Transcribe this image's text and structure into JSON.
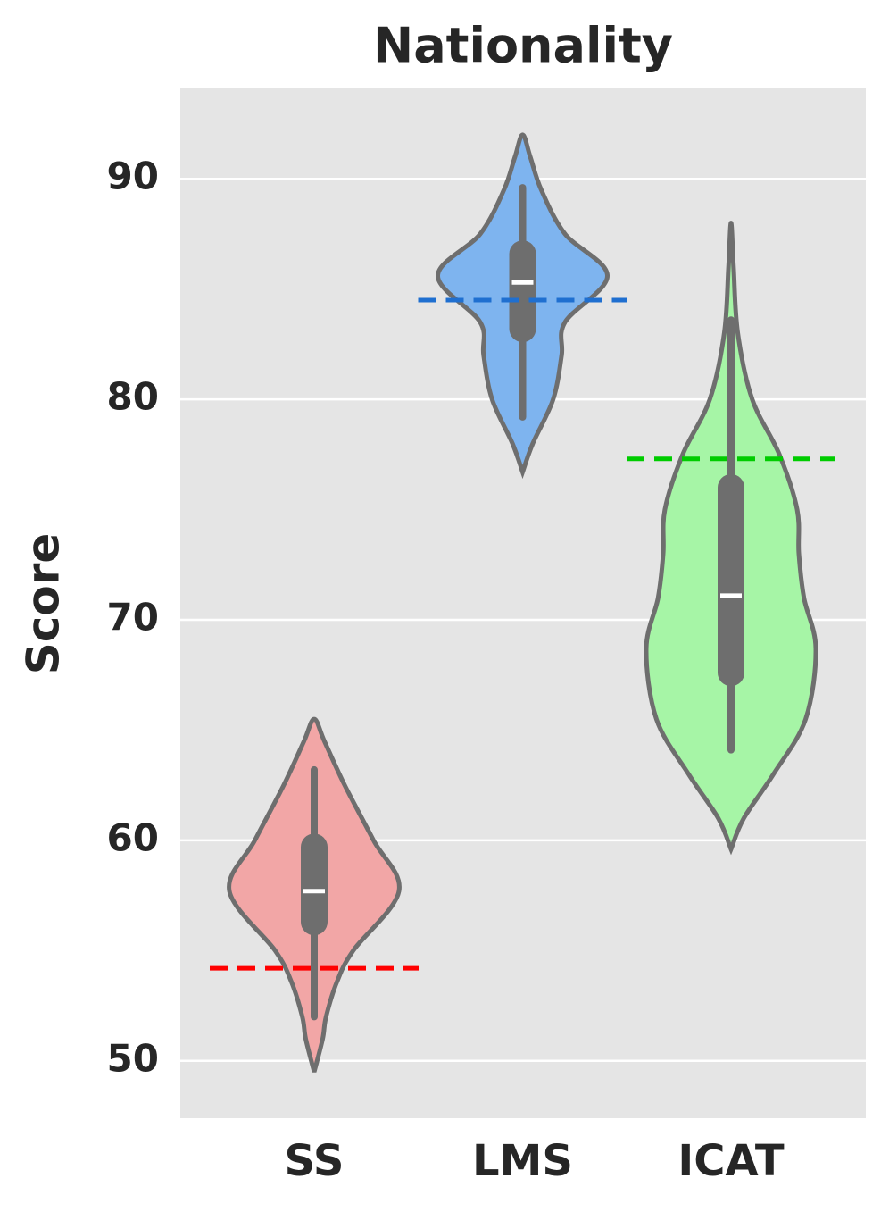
{
  "chart_data": {
    "type": "violin",
    "title": "Nationality",
    "y_label": "Score",
    "categories": [
      "SS",
      "LMS",
      "ICAT"
    ],
    "ylim": [
      47.4,
      94.1
    ],
    "yticks": [
      50,
      60,
      70,
      80,
      90
    ],
    "grid": true,
    "series": [
      {
        "color": "#f2a6a6",
        "density": [
          [
            49.5,
            0
          ],
          [
            51,
            0.1
          ],
          [
            52,
            0.14
          ],
          [
            53.6,
            0.27
          ],
          [
            55,
            0.46
          ],
          [
            57.7,
            1.0
          ],
          [
            60,
            0.7
          ],
          [
            62.5,
            0.36
          ],
          [
            64.5,
            0.12
          ],
          [
            65.5,
            0
          ]
        ],
        "whisker": [
          52,
          63.2
        ],
        "box": [
          56.3,
          59.7
        ],
        "median": 57.7
      },
      {
        "color": "#7eb4ef",
        "density": [
          [
            76.7,
            0
          ],
          [
            78,
            0.12
          ],
          [
            80,
            0.36
          ],
          [
            82,
            0.46
          ],
          [
            83.5,
            0.5
          ],
          [
            85.6,
            1.0
          ],
          [
            87.5,
            0.5
          ],
          [
            89.5,
            0.22
          ],
          [
            91,
            0.09
          ],
          [
            92,
            0
          ]
        ],
        "whisker": [
          79.2,
          89.6
        ],
        "box": [
          83.2,
          86.6
        ],
        "median": 85.3
      },
      {
        "color": "#a6f5a6",
        "density": [
          [
            59.6,
            0
          ],
          [
            61,
            0.15
          ],
          [
            63,
            0.5
          ],
          [
            65.5,
            0.88
          ],
          [
            68.7,
            1.0
          ],
          [
            71,
            0.86
          ],
          [
            73,
            0.8
          ],
          [
            75,
            0.78
          ],
          [
            77.5,
            0.57
          ],
          [
            80,
            0.25
          ],
          [
            83,
            0.08
          ],
          [
            86,
            0.03
          ],
          [
            88,
            0
          ]
        ],
        "whisker": [
          64.1,
          83.6
        ],
        "box": [
          67.6,
          76.0
        ],
        "median": 71.1
      }
    ],
    "mean_lines": {
      "values": [
        54.2,
        84.5,
        77.3
      ],
      "colors": [
        "#ff0000",
        "#1f6fd0",
        "#00cc00"
      ]
    }
  }
}
